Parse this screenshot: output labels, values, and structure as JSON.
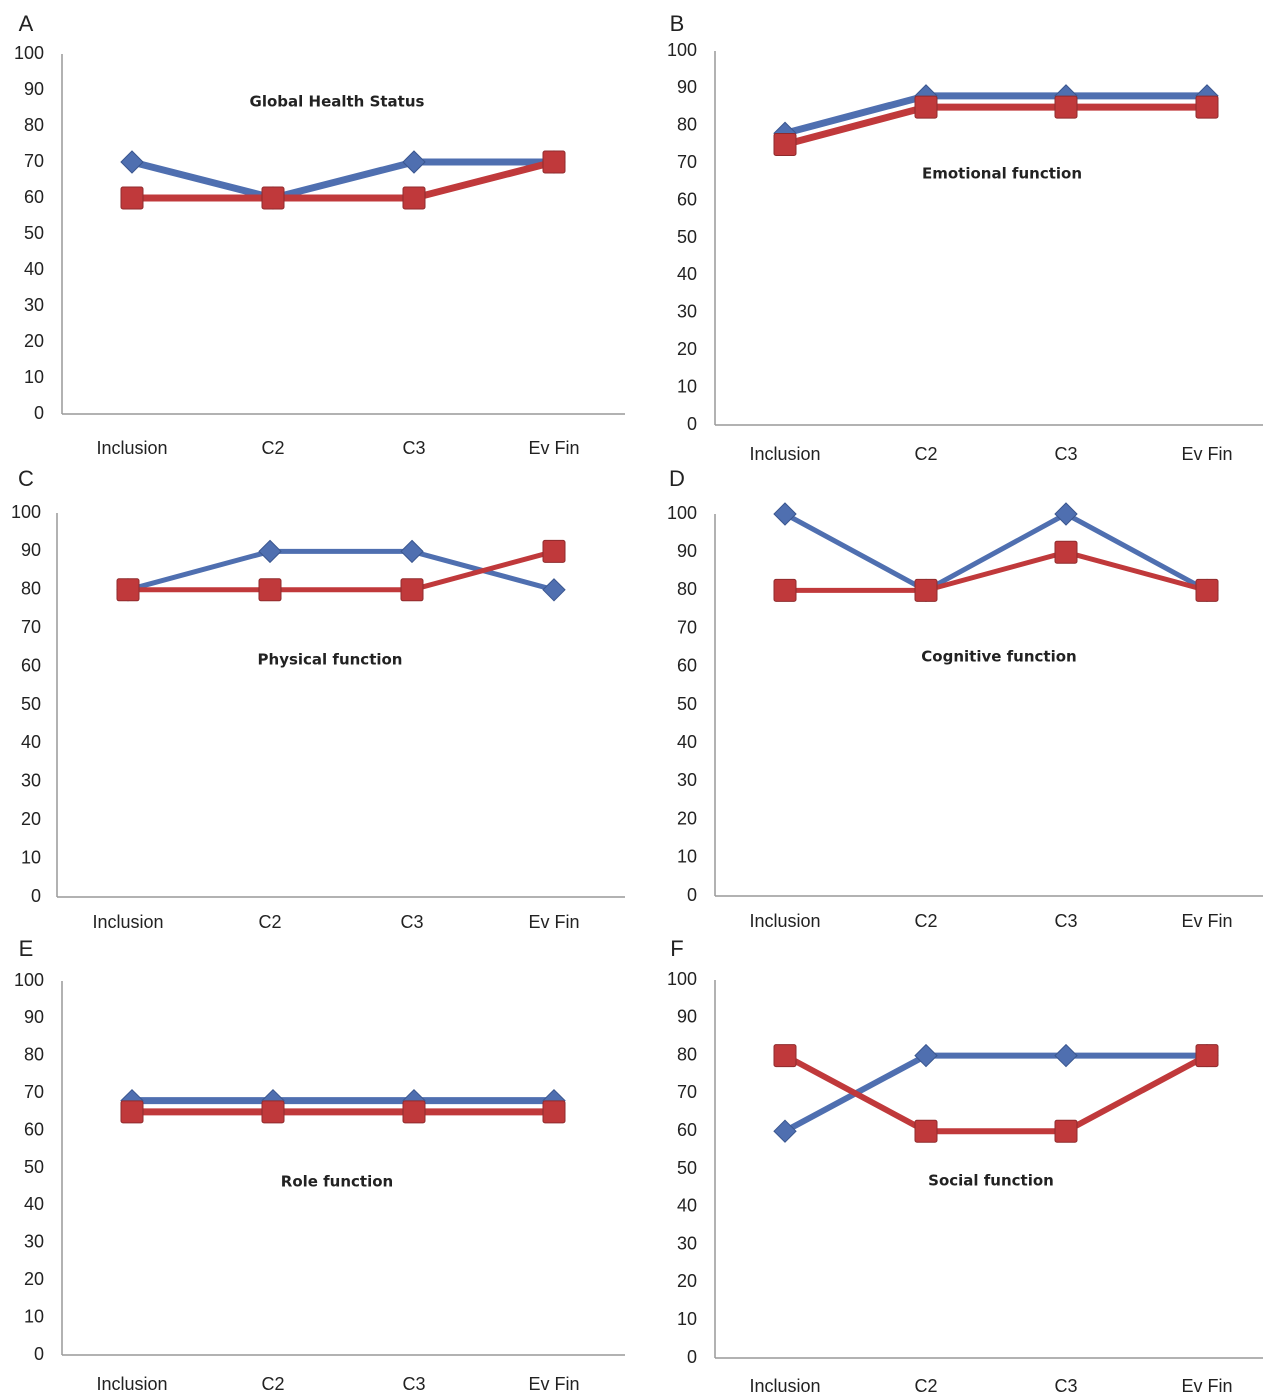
{
  "chart_data": [
    {
      "type": "line",
      "label": "A",
      "title": "Global Health Status",
      "categories": [
        "Inclusion",
        "C2",
        "C3",
        "Ev Fin"
      ],
      "series": [
        {
          "color": "#4f6fb0",
          "values": [
            70,
            60,
            70,
            70
          ]
        },
        {
          "color": "#c0393b",
          "values": [
            60,
            60,
            60,
            70
          ]
        }
      ],
      "ylim": [
        0,
        100
      ],
      "yticks": [
        0,
        10,
        20,
        30,
        40,
        50,
        60,
        70,
        80,
        90,
        100
      ]
    },
    {
      "type": "line",
      "label": "B",
      "title": "Emotional function",
      "categories": [
        "Inclusion",
        "C2",
        "C3",
        "Ev Fin"
      ],
      "series": [
        {
          "color": "#4f6fb0",
          "values": [
            78,
            88,
            88,
            88
          ]
        },
        {
          "color": "#c0393b",
          "values": [
            75,
            85,
            85,
            85
          ]
        }
      ],
      "ylim": [
        0,
        100
      ],
      "yticks": [
        0,
        10,
        20,
        30,
        40,
        50,
        60,
        70,
        80,
        90,
        100
      ]
    },
    {
      "type": "line",
      "label": "C",
      "title": "Physical function",
      "categories": [
        "Inclusion",
        "C2",
        "C3",
        "Ev Fin"
      ],
      "series": [
        {
          "color": "#4f6fb0",
          "values": [
            80,
            90,
            90,
            80
          ]
        },
        {
          "color": "#c0393b",
          "values": [
            80,
            80,
            80,
            90
          ]
        }
      ],
      "ylim": [
        0,
        100
      ],
      "yticks": [
        0,
        10,
        20,
        30,
        40,
        50,
        60,
        70,
        80,
        90,
        100
      ]
    },
    {
      "type": "line",
      "label": "D",
      "title": "Cognitive function",
      "categories": [
        "Inclusion",
        "C2",
        "C3",
        "Ev Fin"
      ],
      "series": [
        {
          "color": "#4f6fb0",
          "values": [
            100,
            80,
            100,
            80
          ]
        },
        {
          "color": "#c0393b",
          "values": [
            80,
            80,
            90,
            80
          ]
        }
      ],
      "ylim": [
        0,
        100
      ],
      "yticks": [
        0,
        10,
        20,
        30,
        40,
        50,
        60,
        70,
        80,
        90,
        100
      ]
    },
    {
      "type": "line",
      "label": "E",
      "title": "Role function",
      "categories": [
        "Inclusion",
        "C2",
        "C3",
        "Ev Fin"
      ],
      "series": [
        {
          "color": "#4f6fb0",
          "values": [
            68,
            68,
            68,
            68
          ]
        },
        {
          "color": "#c0393b",
          "values": [
            65,
            65,
            65,
            65
          ]
        }
      ],
      "ylim": [
        0,
        100
      ],
      "yticks": [
        0,
        10,
        20,
        30,
        40,
        50,
        60,
        70,
        80,
        90,
        100
      ]
    },
    {
      "type": "line",
      "label": "F",
      "title": "Social function",
      "categories": [
        "Inclusion",
        "C2",
        "C3",
        "Ev Fin"
      ],
      "series": [
        {
          "color": "#4f6fb0",
          "values": [
            60,
            80,
            80,
            80
          ]
        },
        {
          "color": "#c0393b",
          "values": [
            80,
            60,
            60,
            80
          ]
        }
      ],
      "ylim": [
        0,
        100
      ],
      "yticks": [
        0,
        10,
        20,
        30,
        40,
        50,
        60,
        70,
        80,
        90,
        100
      ]
    }
  ]
}
